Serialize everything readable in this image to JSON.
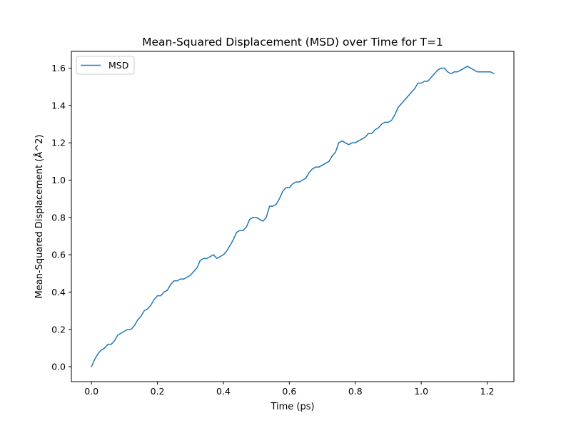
{
  "chart_data": {
    "type": "line",
    "title": "Mean-Squared Displacement (MSD) over Time for T=1",
    "xlabel": "Time (ps)",
    "ylabel": "Mean-Squared Displacement (Å^2)",
    "xlim": [
      -0.061,
      1.281
    ],
    "ylim": [
      -0.08,
      1.69
    ],
    "xticks": [
      0.0,
      0.2,
      0.4,
      0.6,
      0.8,
      1.0,
      1.2
    ],
    "xtick_labels": [
      "0.0",
      "0.2",
      "0.4",
      "0.6",
      "0.8",
      "1.0",
      "1.2"
    ],
    "yticks": [
      0.0,
      0.2,
      0.4,
      0.6,
      0.8,
      1.0,
      1.2,
      1.4,
      1.6
    ],
    "ytick_labels": [
      "0.0",
      "0.2",
      "0.4",
      "0.6",
      "0.8",
      "1.0",
      "1.2",
      "1.4",
      "1.6"
    ],
    "grid": false,
    "legend": {
      "position": "upper-left",
      "entries": [
        "MSD"
      ]
    },
    "series": [
      {
        "name": "MSD",
        "color": "#1f77b4",
        "x": [
          0.0,
          0.01,
          0.02,
          0.03,
          0.04,
          0.05,
          0.06,
          0.07,
          0.08,
          0.09,
          0.1,
          0.11,
          0.12,
          0.13,
          0.14,
          0.15,
          0.16,
          0.17,
          0.18,
          0.19,
          0.2,
          0.21,
          0.22,
          0.23,
          0.24,
          0.25,
          0.26,
          0.27,
          0.28,
          0.29,
          0.3,
          0.31,
          0.32,
          0.33,
          0.34,
          0.35,
          0.36,
          0.37,
          0.38,
          0.39,
          0.4,
          0.41,
          0.42,
          0.43,
          0.44,
          0.45,
          0.46,
          0.47,
          0.48,
          0.49,
          0.5,
          0.51,
          0.52,
          0.53,
          0.54,
          0.55,
          0.56,
          0.57,
          0.58,
          0.59,
          0.6,
          0.61,
          0.62,
          0.63,
          0.64,
          0.65,
          0.66,
          0.67,
          0.68,
          0.69,
          0.7,
          0.71,
          0.72,
          0.73,
          0.74,
          0.75,
          0.76,
          0.77,
          0.78,
          0.79,
          0.8,
          0.81,
          0.82,
          0.83,
          0.84,
          0.85,
          0.86,
          0.87,
          0.88,
          0.89,
          0.9,
          0.91,
          0.92,
          0.93,
          0.94,
          0.95,
          0.96,
          0.97,
          0.98,
          0.99,
          1.0,
          1.01,
          1.02,
          1.03,
          1.04,
          1.05,
          1.06,
          1.07,
          1.08,
          1.09,
          1.1,
          1.11,
          1.12,
          1.13,
          1.14,
          1.15,
          1.16,
          1.17,
          1.18,
          1.19,
          1.2,
          1.21,
          1.22
        ],
        "y": [
          0.0,
          0.04,
          0.07,
          0.09,
          0.1,
          0.12,
          0.12,
          0.14,
          0.17,
          0.18,
          0.19,
          0.2,
          0.2,
          0.22,
          0.25,
          0.27,
          0.3,
          0.31,
          0.33,
          0.36,
          0.38,
          0.38,
          0.4,
          0.41,
          0.44,
          0.46,
          0.46,
          0.47,
          0.47,
          0.48,
          0.49,
          0.51,
          0.53,
          0.57,
          0.58,
          0.58,
          0.59,
          0.6,
          0.58,
          0.59,
          0.6,
          0.62,
          0.65,
          0.68,
          0.72,
          0.73,
          0.73,
          0.75,
          0.79,
          0.8,
          0.8,
          0.79,
          0.78,
          0.8,
          0.86,
          0.86,
          0.87,
          0.9,
          0.94,
          0.96,
          0.96,
          0.98,
          0.99,
          0.99,
          1.0,
          1.01,
          1.04,
          1.06,
          1.07,
          1.07,
          1.08,
          1.09,
          1.1,
          1.13,
          1.15,
          1.2,
          1.21,
          1.2,
          1.19,
          1.2,
          1.2,
          1.21,
          1.22,
          1.23,
          1.25,
          1.25,
          1.27,
          1.28,
          1.3,
          1.31,
          1.31,
          1.32,
          1.35,
          1.39,
          1.41,
          1.43,
          1.45,
          1.47,
          1.49,
          1.52,
          1.52,
          1.53,
          1.53,
          1.55,
          1.57,
          1.59,
          1.6,
          1.6,
          1.58,
          1.57,
          1.58,
          1.58,
          1.59,
          1.6,
          1.61,
          1.6,
          1.59,
          1.58,
          1.58,
          1.58,
          1.58,
          1.58,
          1.57
        ]
      }
    ]
  }
}
